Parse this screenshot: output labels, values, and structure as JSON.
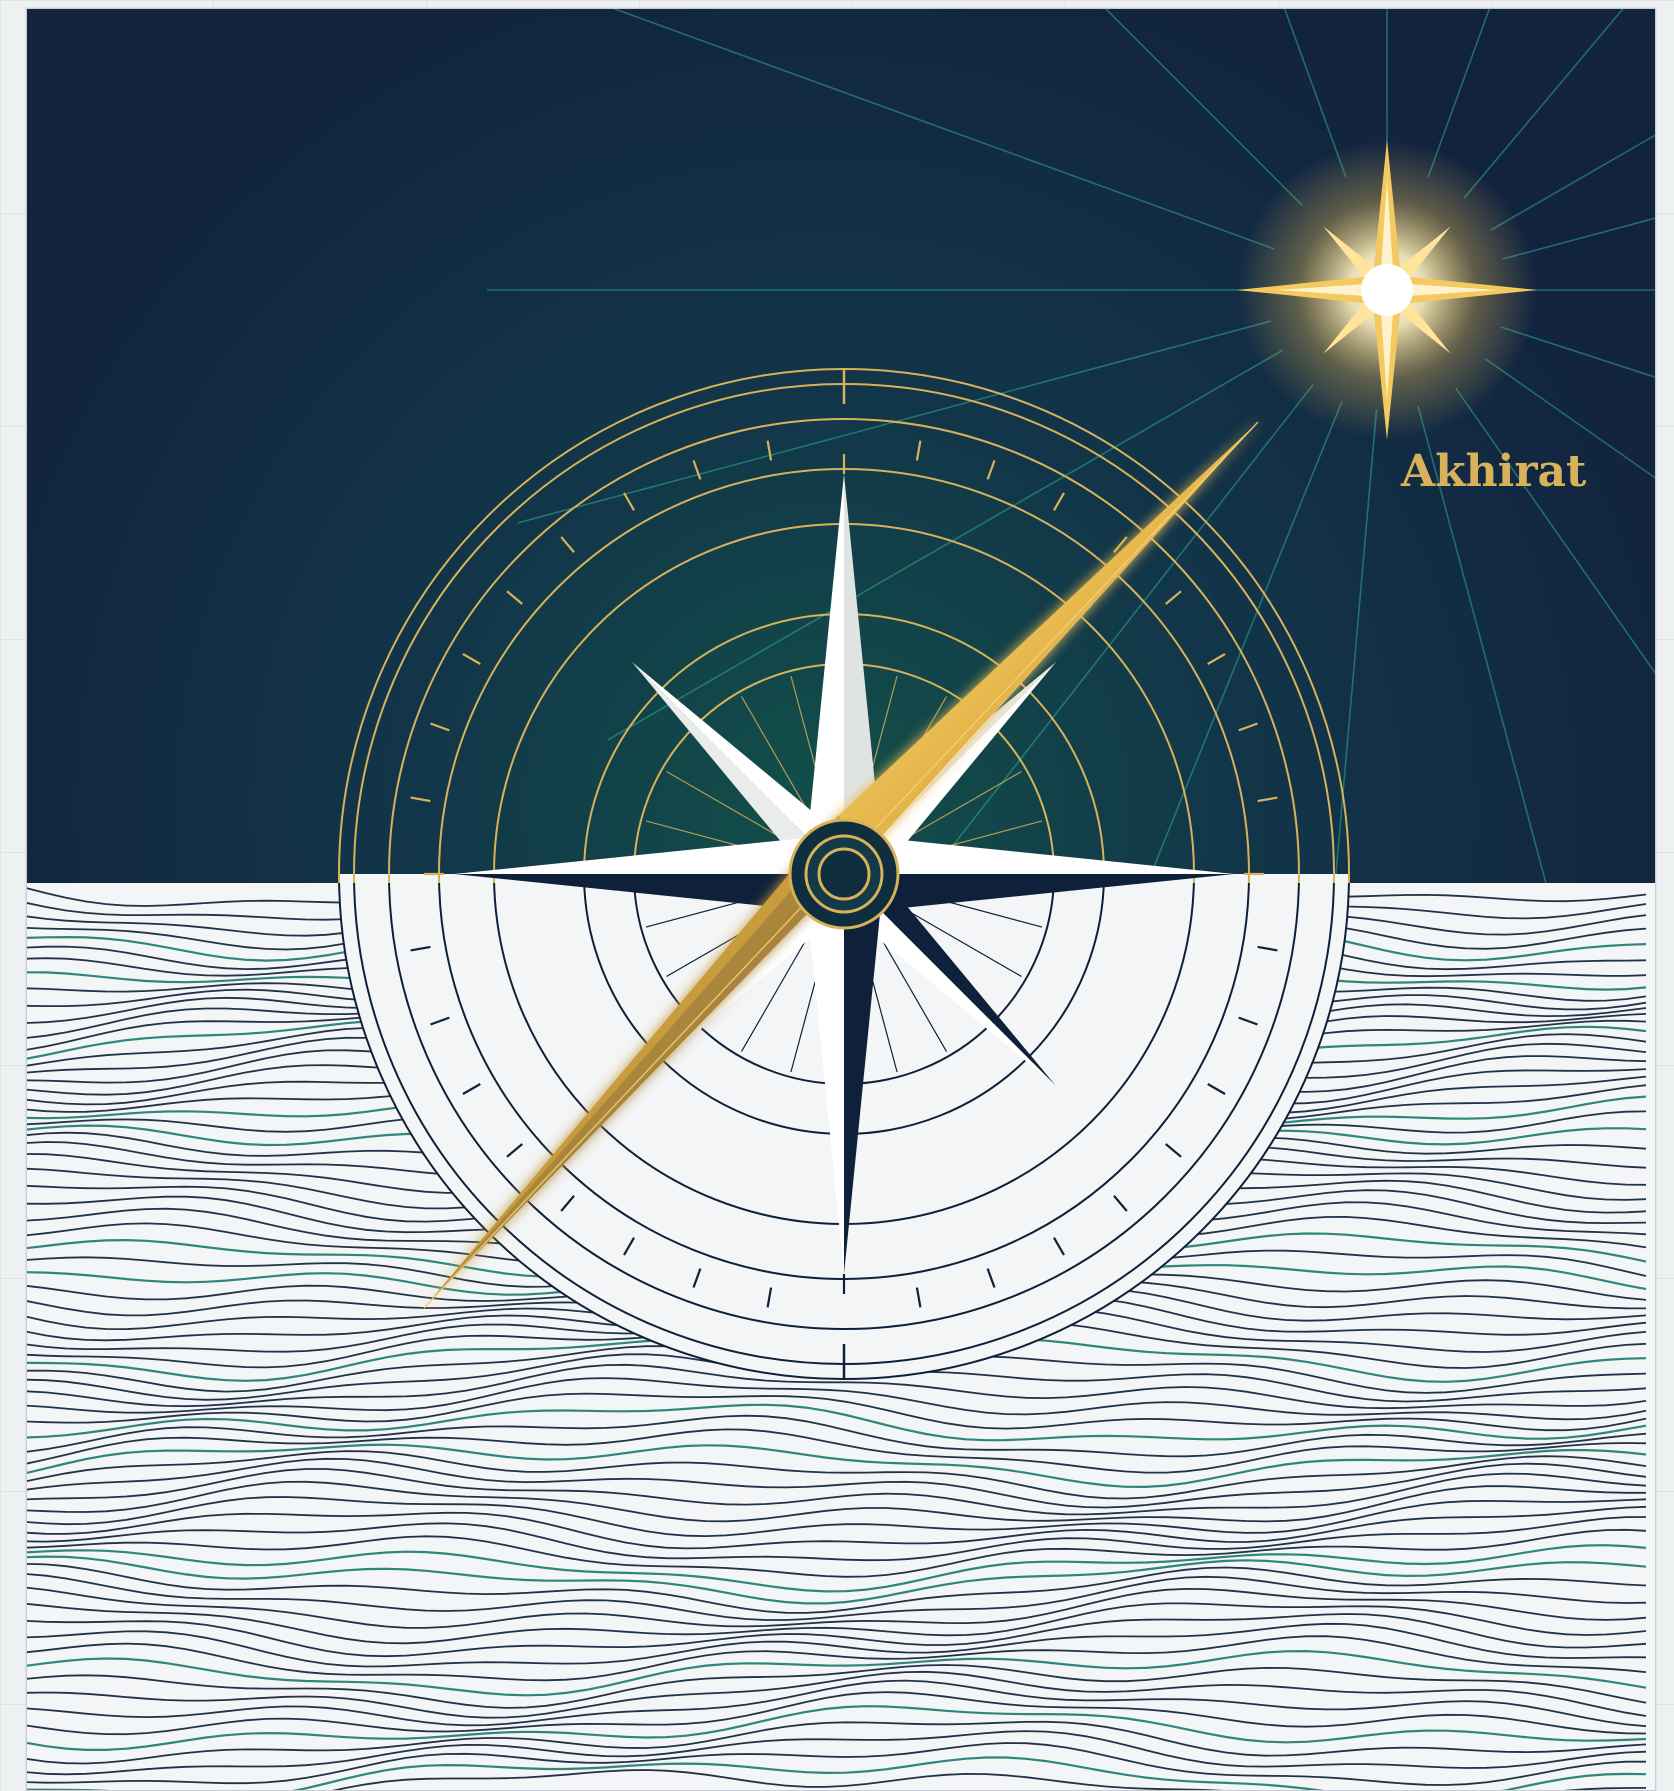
{
  "artwork": {
    "star_label": "Akhirat",
    "colors": {
      "sky_dark": "#12233f",
      "sky_glow": "#114a48",
      "gold": "#d8b25a",
      "gold_bright": "#ffd86a",
      "navy_line": "#0f213a",
      "teal_line": "#1f7d6b",
      "paper": "#f3f5f6"
    },
    "icons": {
      "compass": "compass-rose-icon",
      "needle": "compass-needle-icon",
      "star": "guiding-star-icon"
    }
  }
}
